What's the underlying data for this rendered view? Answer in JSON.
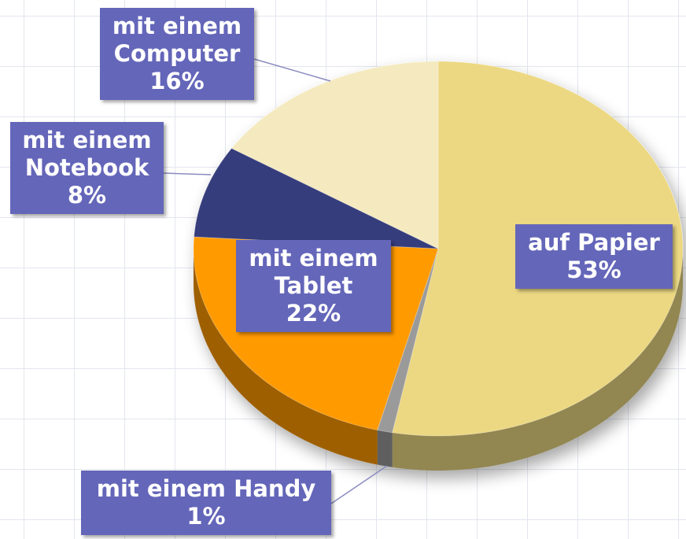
{
  "chart_data": {
    "type": "pie",
    "categories": [
      "auf Papier",
      "mit einem Handy",
      "mit einem Tablet",
      "mit einem Notebook",
      "mit einem Computer"
    ],
    "values": [
      53,
      1,
      22,
      8,
      16
    ],
    "value_labels": [
      "53%",
      "1%",
      "22%",
      "8%",
      "16%"
    ],
    "colors": [
      "#ecd882",
      "#9a9a9a",
      "#ff9a00",
      "#363c7c",
      "#f5eabf"
    ]
  }
}
